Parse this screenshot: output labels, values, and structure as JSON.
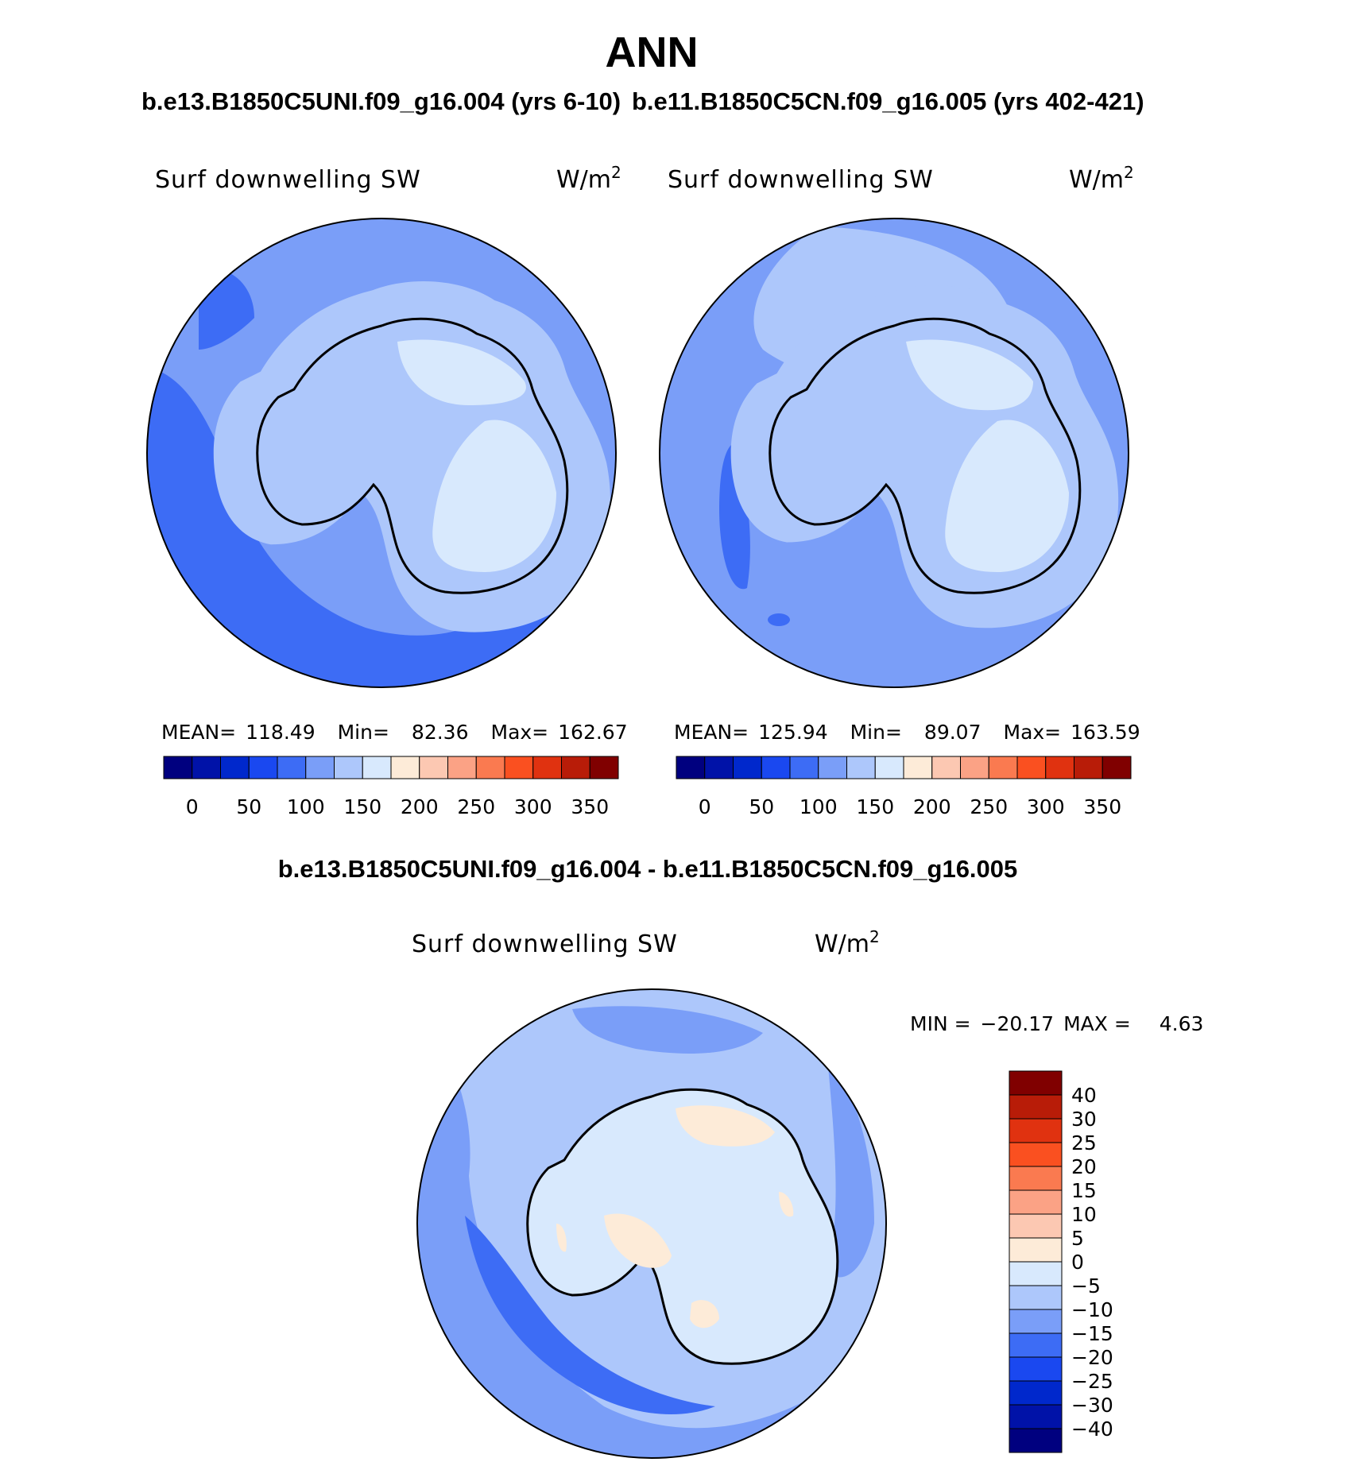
{
  "figure": {
    "title": "ANN",
    "season": "ANN"
  },
  "panels": [
    {
      "id": "case",
      "title": "b.e13.B1850C5UNI.f09_g16.004 (yrs 6-10)",
      "variable": "Surf downwelling SW",
      "units": "W/m",
      "units_exponent": "2",
      "stats": {
        "mean_label": "MEAN=",
        "mean": "118.49",
        "min_label": "Min=",
        "min": "82.36",
        "max_label": "Max=",
        "max": "162.67"
      }
    },
    {
      "id": "control",
      "title": "b.e11.B1850C5CN.f09_g16.005 (yrs 402-421)",
      "variable": "Surf downwelling SW",
      "units": "W/m",
      "units_exponent": "2",
      "stats": {
        "mean_label": "MEAN=",
        "mean": "125.94",
        "min_label": "Min=",
        "min": "89.07",
        "max_label": "Max=",
        "max": "163.59"
      }
    },
    {
      "id": "difference",
      "title": "b.e13.B1850C5UNI.f09_g16.004 - b.e11.B1850C5CN.f09_g16.005",
      "variable": "Surf downwelling SW",
      "units": "W/m",
      "units_exponent": "2",
      "stats": {
        "min_label": "MIN =",
        "min": "−20.17",
        "max_label": "MAX =",
        "max": "4.63"
      }
    }
  ],
  "colorbars": {
    "absolute": {
      "orientation": "horizontal",
      "colors": [
        "#00007f",
        "#0012a8",
        "#0028cc",
        "#1a48f0",
        "#3d6cf5",
        "#7a9ef8",
        "#adc7fb",
        "#d8e9fd",
        "#fdebd8",
        "#fcc8b2",
        "#fba285",
        "#fa7a50",
        "#fa5020",
        "#e03210",
        "#b81c08",
        "#800000"
      ],
      "tick_labels": [
        "0",
        "50",
        "100",
        "150",
        "200",
        "250",
        "300",
        "350"
      ]
    },
    "difference": {
      "orientation": "vertical",
      "colors_top_to_bottom": [
        "#800000",
        "#b81c08",
        "#e03210",
        "#fa5020",
        "#fa7a50",
        "#fba285",
        "#fcc8b2",
        "#fdebd8",
        "#d8e9fd",
        "#adc7fb",
        "#7a9ef8",
        "#3d6cf5",
        "#1a48f0",
        "#0028cc",
        "#0012a8",
        "#00007f"
      ],
      "tick_labels_top_to_bottom": [
        "40",
        "30",
        "25",
        "20",
        "15",
        "10",
        "5",
        "0",
        "−5",
        "−10",
        "−15",
        "−20",
        "−25",
        "−30",
        "−40"
      ]
    }
  },
  "map": {
    "projection": "south-polar-stereographic",
    "region": "Antarctica and Southern Ocean",
    "coastline_color": "#000000"
  }
}
